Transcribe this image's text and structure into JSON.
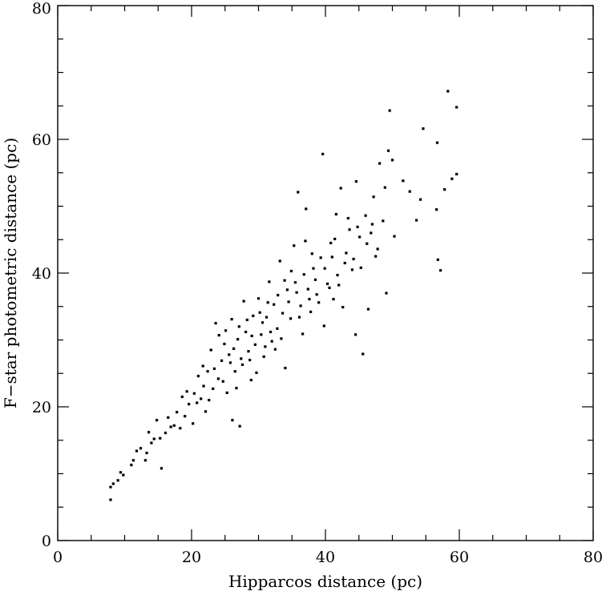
{
  "chart_data": {
    "type": "scatter",
    "title": "",
    "xlabel": "Hipparcos distance (pc)",
    "ylabel": "F−star photometric distance (pc)",
    "xlim": [
      0,
      80
    ],
    "ylim": [
      0,
      80
    ],
    "x_major_ticks": [
      0,
      20,
      40,
      60,
      80
    ],
    "y_major_ticks": [
      0,
      20,
      40,
      60,
      80
    ],
    "x_tick_labels": [
      "0",
      "20",
      "40",
      "60",
      "80"
    ],
    "y_tick_labels": [
      "0",
      "20",
      "40",
      "60",
      "80"
    ],
    "minor_tick_step": 5,
    "grid": false,
    "legend": "none",
    "marker_color": "#000000",
    "series": [
      {
        "points": [
          [
            7.9,
            6.1
          ],
          [
            7.9,
            8.0
          ],
          [
            8.3,
            8.5
          ],
          [
            9.0,
            9.0
          ],
          [
            9.4,
            10.2
          ],
          [
            9.8,
            9.8
          ],
          [
            11.0,
            11.3
          ],
          [
            11.3,
            12.0
          ],
          [
            11.8,
            13.4
          ],
          [
            12.4,
            13.8
          ],
          [
            13.1,
            12.0
          ],
          [
            13.3,
            13.1
          ],
          [
            13.6,
            16.2
          ],
          [
            14.0,
            14.6
          ],
          [
            14.4,
            15.2
          ],
          [
            14.8,
            18.0
          ],
          [
            15.3,
            15.3
          ],
          [
            15.5,
            10.8
          ],
          [
            16.1,
            16.1
          ],
          [
            16.5,
            18.4
          ],
          [
            16.9,
            17.0
          ],
          [
            17.4,
            17.2
          ],
          [
            17.8,
            19.2
          ],
          [
            18.3,
            16.8
          ],
          [
            18.6,
            21.5
          ],
          [
            19.0,
            18.6
          ],
          [
            19.6,
            20.4
          ],
          [
            20.2,
            17.5
          ],
          [
            20.4,
            22.0
          ],
          [
            21.0,
            24.6
          ],
          [
            21.4,
            21.2
          ],
          [
            21.8,
            23.1
          ],
          [
            22.1,
            19.3
          ],
          [
            22.4,
            25.3
          ],
          [
            22.9,
            28.5
          ],
          [
            23.2,
            22.7
          ],
          [
            23.6,
            32.5
          ],
          [
            24.0,
            24.2
          ],
          [
            24.5,
            26.9
          ],
          [
            24.9,
            29.4
          ],
          [
            25.3,
            22.1
          ],
          [
            25.6,
            27.8
          ],
          [
            26.0,
            33.1
          ],
          [
            26.1,
            18.0
          ],
          [
            26.5,
            25.3
          ],
          [
            26.9,
            30.1
          ],
          [
            27.2,
            17.1
          ],
          [
            27.4,
            27.2
          ],
          [
            27.8,
            35.8
          ],
          [
            28.1,
            31.2
          ],
          [
            28.5,
            28.3
          ],
          [
            28.9,
            24.0
          ],
          [
            29.2,
            33.6
          ],
          [
            29.5,
            29.3
          ],
          [
            30.0,
            36.2
          ],
          [
            30.4,
            30.8
          ],
          [
            30.8,
            27.5
          ],
          [
            31.2,
            33.4
          ],
          [
            31.6,
            38.7
          ],
          [
            32.0,
            29.8
          ],
          [
            32.3,
            35.3
          ],
          [
            32.8,
            31.7
          ],
          [
            33.2,
            41.8
          ],
          [
            33.6,
            34.0
          ],
          [
            34.0,
            25.8
          ],
          [
            34.3,
            37.5
          ],
          [
            34.8,
            33.2
          ],
          [
            35.3,
            44.1
          ],
          [
            35.5,
            38.6
          ],
          [
            35.9,
            52.1
          ],
          [
            36.3,
            35.1
          ],
          [
            36.6,
            30.9
          ],
          [
            37.0,
            44.8
          ],
          [
            37.1,
            49.6
          ],
          [
            37.4,
            37.6
          ],
          [
            37.8,
            34.2
          ],
          [
            38.2,
            40.7
          ],
          [
            38.7,
            36.8
          ],
          [
            39.3,
            42.3
          ],
          [
            39.6,
            57.8
          ],
          [
            39.8,
            32.1
          ],
          [
            40.3,
            38.4
          ],
          [
            40.8,
            44.5
          ],
          [
            41.2,
            36.1
          ],
          [
            41.6,
            48.8
          ],
          [
            41.8,
            39.7
          ],
          [
            42.3,
            52.7
          ],
          [
            42.6,
            34.9
          ],
          [
            43.1,
            43.0
          ],
          [
            43.6,
            46.5
          ],
          [
            44.0,
            40.5
          ],
          [
            44.5,
            30.8
          ],
          [
            44.6,
            53.7
          ],
          [
            45.1,
            45.4
          ],
          [
            45.6,
            27.9
          ],
          [
            46.0,
            48.6
          ],
          [
            46.4,
            34.6
          ],
          [
            46.8,
            46.0
          ],
          [
            47.2,
            51.4
          ],
          [
            47.8,
            43.6
          ],
          [
            48.1,
            56.4
          ],
          [
            48.6,
            47.8
          ],
          [
            48.9,
            52.8
          ],
          [
            49.1,
            37.0
          ],
          [
            49.4,
            58.3
          ],
          [
            49.6,
            64.3
          ],
          [
            50.0,
            56.9
          ],
          [
            50.3,
            45.5
          ],
          [
            51.6,
            53.8
          ],
          [
            52.6,
            52.2
          ],
          [
            53.6,
            47.9
          ],
          [
            54.2,
            51.0
          ],
          [
            54.6,
            61.6
          ],
          [
            56.6,
            49.5
          ],
          [
            56.7,
            59.5
          ],
          [
            56.8,
            42.0
          ],
          [
            57.2,
            40.4
          ],
          [
            57.8,
            52.5
          ],
          [
            58.3,
            67.2
          ],
          [
            58.9,
            54.1
          ],
          [
            59.6,
            64.8
          ],
          [
            59.6,
            54.8
          ],
          [
            19.3,
            22.3
          ],
          [
            20.8,
            20.6
          ],
          [
            21.7,
            26.1
          ],
          [
            22.6,
            21.0
          ],
          [
            23.4,
            25.7
          ],
          [
            24.1,
            30.7
          ],
          [
            24.7,
            23.8
          ],
          [
            25.1,
            31.4
          ],
          [
            25.8,
            26.6
          ],
          [
            26.3,
            28.7
          ],
          [
            26.7,
            22.8
          ],
          [
            27.1,
            32.0
          ],
          [
            27.6,
            26.3
          ],
          [
            28.3,
            33.0
          ],
          [
            28.7,
            27.0
          ],
          [
            29.0,
            30.6
          ],
          [
            29.7,
            25.1
          ],
          [
            30.2,
            34.1
          ],
          [
            30.6,
            32.6
          ],
          [
            31.0,
            29.0
          ],
          [
            31.4,
            35.6
          ],
          [
            31.8,
            31.2
          ],
          [
            32.5,
            28.6
          ],
          [
            32.9,
            36.7
          ],
          [
            33.4,
            30.2
          ],
          [
            33.9,
            38.9
          ],
          [
            34.5,
            35.7
          ],
          [
            34.9,
            40.3
          ],
          [
            35.7,
            37.1
          ],
          [
            36.1,
            33.4
          ],
          [
            36.8,
            39.8
          ],
          [
            37.6,
            36.1
          ],
          [
            38.0,
            42.9
          ],
          [
            38.5,
            39.0
          ],
          [
            39.0,
            35.6
          ],
          [
            39.9,
            40.7
          ],
          [
            40.6,
            37.8
          ],
          [
            41.0,
            42.4
          ],
          [
            41.4,
            45.1
          ],
          [
            42.0,
            38.2
          ],
          [
            42.9,
            41.5
          ],
          [
            43.4,
            48.2
          ],
          [
            44.2,
            42.1
          ],
          [
            44.8,
            46.9
          ],
          [
            45.3,
            40.8
          ],
          [
            46.2,
            44.4
          ],
          [
            47.0,
            47.3
          ],
          [
            47.5,
            42.5
          ]
        ]
      }
    ]
  }
}
